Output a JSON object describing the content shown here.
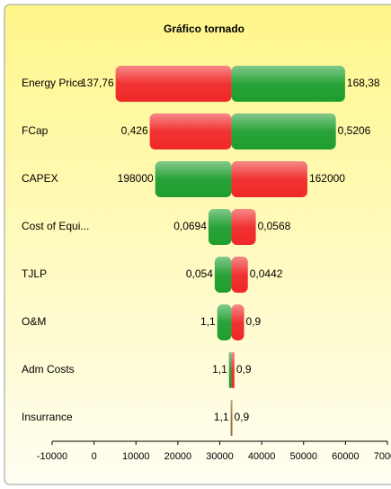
{
  "chart_data": {
    "type": "tornado",
    "title": "Gráfico tornado",
    "categories": [
      "Energy Price",
      "FCap",
      "CAPEX",
      "Cost of Equi...",
      "TJLP",
      "O&M",
      "Adm Costs",
      "Insurrance"
    ],
    "base": 32800,
    "left": {
      "values": [
        5150,
        13300,
        14600,
        27300,
        28800,
        29400,
        32200,
        32600
      ],
      "value_labels": [
        "137,76",
        "0,426",
        "198000",
        "0,0694",
        "0,054",
        "1,1",
        "1,1",
        "1,1"
      ],
      "colors": [
        "#f02828",
        "#f02828",
        "#1e9e2e",
        "#1e9e2e",
        "#1e9e2e",
        "#1e9e2e",
        "#1e9e2e",
        "#1e9e2e"
      ]
    },
    "right": {
      "values": [
        59900,
        57700,
        50900,
        38600,
        36700,
        35800,
        33500,
        33000
      ],
      "value_labels": [
        "168,38",
        "0,5206",
        "162000",
        "0,0568",
        "0,0442",
        "0,9",
        "0,9",
        "0,9"
      ],
      "colors": [
        "#1e9e2e",
        "#1e9e2e",
        "#f02828",
        "#f02828",
        "#f02828",
        "#f02828",
        "#f02828",
        "#f02828"
      ]
    },
    "xlim": [
      -10000,
      70000
    ],
    "xticks": [
      -10000,
      0,
      10000,
      20000,
      30000,
      40000,
      50000,
      60000,
      70000
    ]
  }
}
